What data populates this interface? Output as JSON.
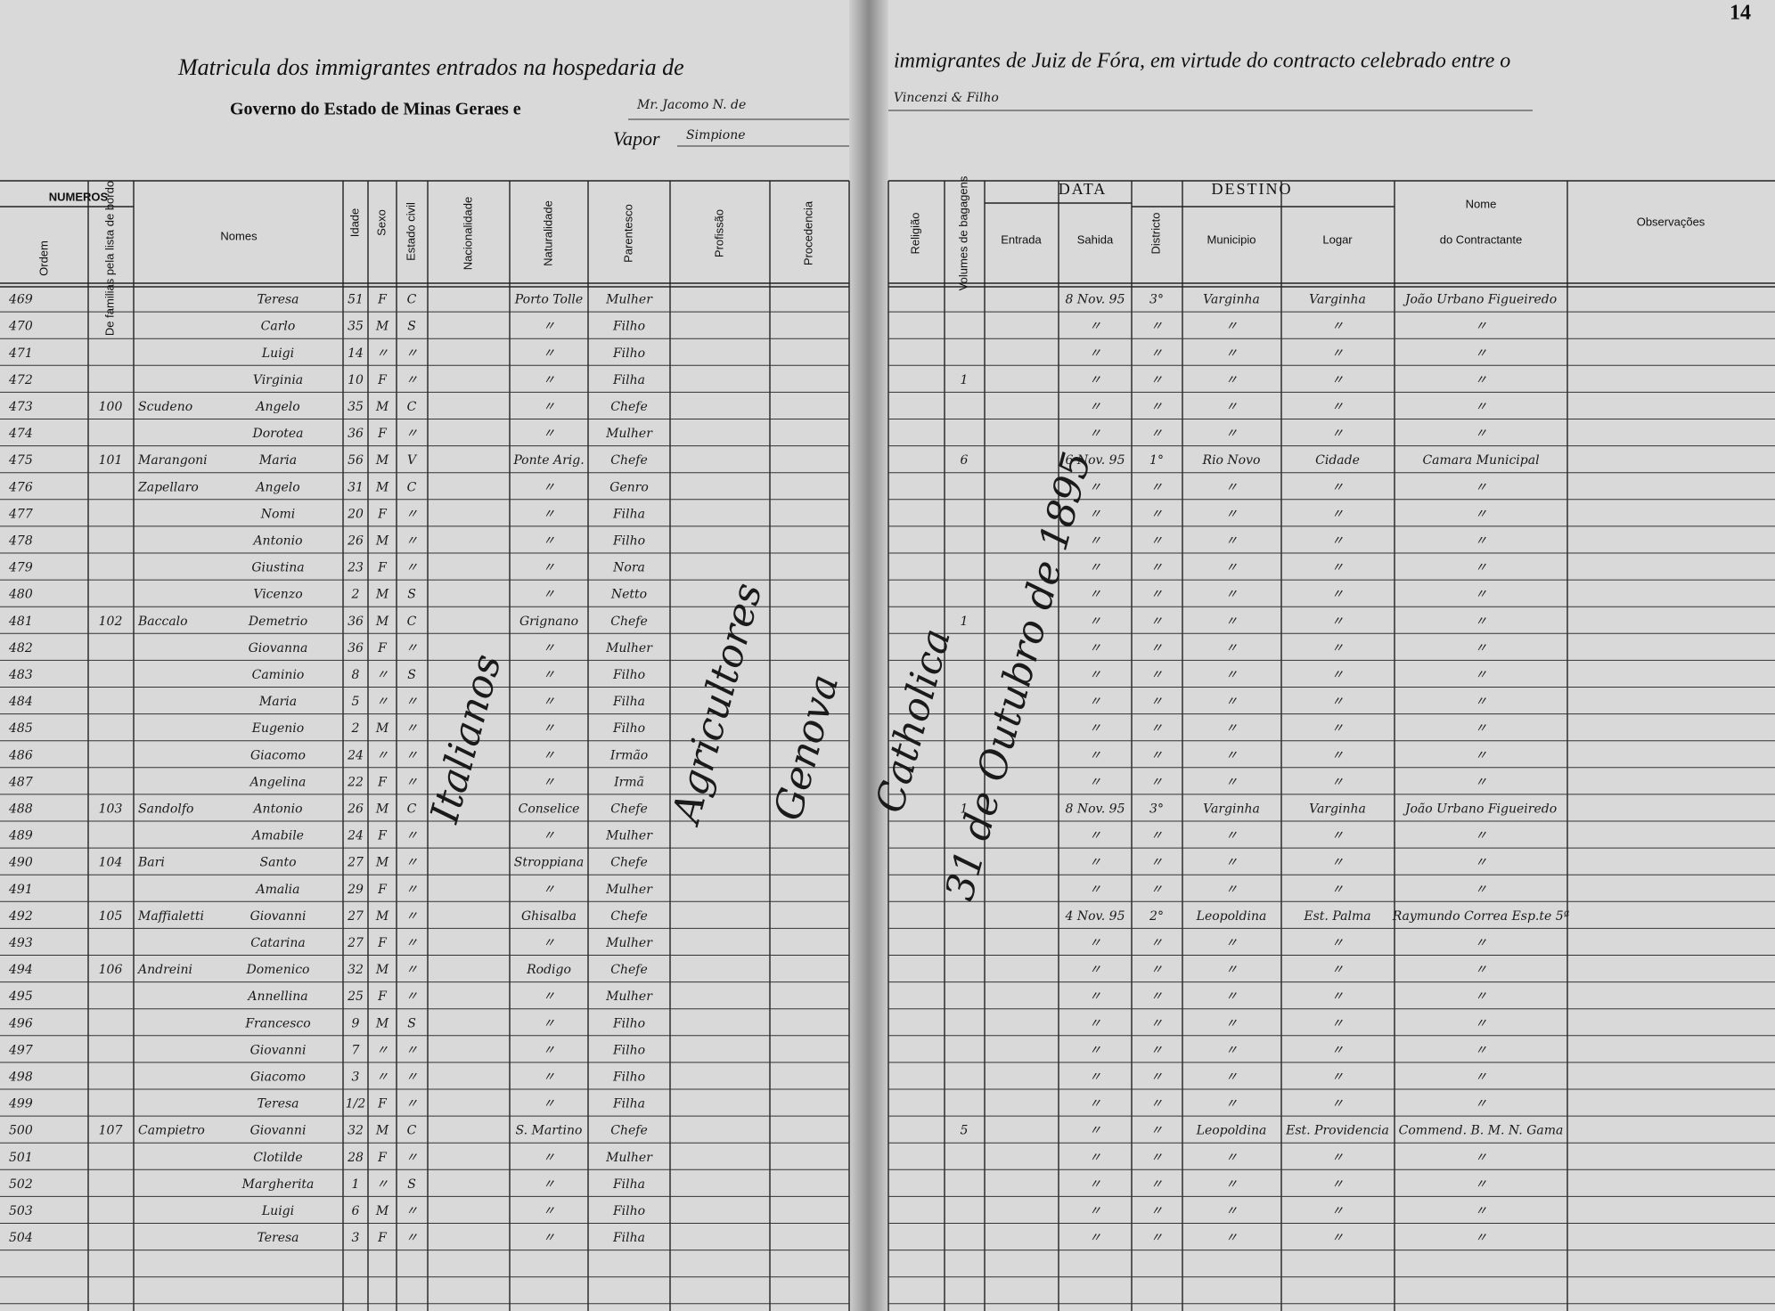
{
  "header": {
    "page_number": "14",
    "title_left": "Matricula dos immigrantes entrados na hospedaria de",
    "title_right": "immigrantes de Juiz de Fóra, em virtude do contracto celebrado entre o",
    "line2_left": "Governo do Estado de Minas Geraes e",
    "line2_hand": "Mr. Jacomo N. de",
    "line2_right": "Vincenzi & Filho",
    "line3_label": "Vapor",
    "line3_hand": "Simpione"
  },
  "columns": {
    "numeros": "NUMEROS",
    "ordem": "Ordem",
    "familias": "De familias pela lista de bordo",
    "nomes": "Nomes",
    "idade": "Idade",
    "sexo": "Sexo",
    "estado": "Estado civil",
    "nacionalidade": "Nacionalidade",
    "naturalidade": "Naturalidade",
    "parentesco": "Parentesco",
    "profissao": "Profissão",
    "procedencia": "Procedencia",
    "religiao": "Religião",
    "volumes": "Volumes de bagagens",
    "data": "DATA",
    "entrada": "Entrada",
    "sahida": "Sahida",
    "districto": "Districto",
    "destino": "DESTINO",
    "municipio": "Municipio",
    "logar": "Logar",
    "contractante_1": "Nome",
    "contractante_2": "do Contractante",
    "observacoes": "Observações"
  },
  "spanning": {
    "nacionalidade": "Italianos",
    "profissao": "Agricultores",
    "procedencia": "Genova",
    "religiao": "Catholica",
    "entrada": "31 de Outubro de 1895"
  },
  "table": {
    "rows": [
      [
        "469",
        null,
        null,
        "Teresa",
        "51",
        "F",
        "C",
        "Porto Tolle",
        "Mulher",
        null,
        "8 Nov. 95",
        "3°",
        "Varginha",
        "Varginha",
        "João Urbano Figueiredo"
      ],
      [
        "470",
        null,
        null,
        "Carlo",
        "35",
        "M",
        "S",
        "〃",
        "Filho",
        null,
        "〃",
        "〃",
        "〃",
        "〃",
        "〃"
      ],
      [
        "471",
        null,
        null,
        "Luigi",
        "14",
        "〃",
        "〃",
        "〃",
        "Filho",
        null,
        "〃",
        "〃",
        "〃",
        "〃",
        "〃"
      ],
      [
        "472",
        null,
        null,
        "Virginia",
        "10",
        "F",
        "〃",
        "〃",
        "Filha",
        "1",
        "〃",
        "〃",
        "〃",
        "〃",
        "〃"
      ],
      [
        "473",
        "100",
        "Scudeno",
        "Angelo",
        "35",
        "M",
        "C",
        "〃",
        "Chefe",
        null,
        "〃",
        "〃",
        "〃",
        "〃",
        "〃"
      ],
      [
        "474",
        null,
        null,
        "Dorotea",
        "36",
        "F",
        "〃",
        "〃",
        "Mulher",
        null,
        "〃",
        "〃",
        "〃",
        "〃",
        "〃"
      ],
      [
        "475",
        "101",
        "Marangoni",
        "Maria",
        "56",
        "M",
        "V",
        "Ponte Arig.",
        "Chefe",
        "6",
        "6 Nov. 95",
        "1°",
        "Rio Novo",
        "Cidade",
        "Camara Municipal"
      ],
      [
        "476",
        null,
        "Zapellaro",
        "Angelo",
        "31",
        "M",
        "C",
        "〃",
        "Genro",
        null,
        "〃",
        "〃",
        "〃",
        "〃",
        "〃"
      ],
      [
        "477",
        null,
        null,
        "Nomi",
        "20",
        "F",
        "〃",
        "〃",
        "Filha",
        null,
        "〃",
        "〃",
        "〃",
        "〃",
        "〃"
      ],
      [
        "478",
        null,
        null,
        "Antonio",
        "26",
        "M",
        "〃",
        "〃",
        "Filho",
        null,
        "〃",
        "〃",
        "〃",
        "〃",
        "〃"
      ],
      [
        "479",
        null,
        null,
        "Giustina",
        "23",
        "F",
        "〃",
        "〃",
        "Nora",
        null,
        "〃",
        "〃",
        "〃",
        "〃",
        "〃"
      ],
      [
        "480",
        null,
        null,
        "Vicenzo",
        "2",
        "M",
        "S",
        "〃",
        "Netto",
        null,
        "〃",
        "〃",
        "〃",
        "〃",
        "〃"
      ],
      [
        "481",
        "102",
        "Baccalo",
        "Demetrio",
        "36",
        "M",
        "C",
        "Grignano",
        "Chefe",
        "1",
        "〃",
        "〃",
        "〃",
        "〃",
        "〃"
      ],
      [
        "482",
        null,
        null,
        "Giovanna",
        "36",
        "F",
        "〃",
        "〃",
        "Mulher",
        null,
        "〃",
        "〃",
        "〃",
        "〃",
        "〃"
      ],
      [
        "483",
        null,
        null,
        "Caminio",
        "8",
        "〃",
        "S",
        "〃",
        "Filho",
        null,
        "〃",
        "〃",
        "〃",
        "〃",
        "〃"
      ],
      [
        "484",
        null,
        null,
        "Maria",
        "5",
        "〃",
        "〃",
        "〃",
        "Filha",
        null,
        "〃",
        "〃",
        "〃",
        "〃",
        "〃"
      ],
      [
        "485",
        null,
        null,
        "Eugenio",
        "2",
        "M",
        "〃",
        "〃",
        "Filho",
        null,
        "〃",
        "〃",
        "〃",
        "〃",
        "〃"
      ],
      [
        "486",
        null,
        null,
        "Giacomo",
        "24",
        "〃",
        "〃",
        "〃",
        "Irmão",
        null,
        "〃",
        "〃",
        "〃",
        "〃",
        "〃"
      ],
      [
        "487",
        null,
        null,
        "Angelina",
        "22",
        "F",
        "〃",
        "〃",
        "Irmã",
        null,
        "〃",
        "〃",
        "〃",
        "〃",
        "〃"
      ],
      [
        "488",
        "103",
        "Sandolfo",
        "Antonio",
        "26",
        "M",
        "C",
        "Conselice",
        "Chefe",
        "1",
        "8 Nov. 95",
        "3°",
        "Varginha",
        "Varginha",
        "João Urbano Figueiredo"
      ],
      [
        "489",
        null,
        null,
        "Amabile",
        "24",
        "F",
        "〃",
        "〃",
        "Mulher",
        null,
        "〃",
        "〃",
        "〃",
        "〃",
        "〃"
      ],
      [
        "490",
        "104",
        "Bari",
        "Santo",
        "27",
        "M",
        "〃",
        "Stroppiana",
        "Chefe",
        null,
        "〃",
        "〃",
        "〃",
        "〃",
        "〃"
      ],
      [
        "491",
        null,
        null,
        "Amalia",
        "29",
        "F",
        "〃",
        "〃",
        "Mulher",
        null,
        "〃",
        "〃",
        "〃",
        "〃",
        "〃"
      ],
      [
        "492",
        "105",
        "Maffialetti",
        "Giovanni",
        "27",
        "M",
        "〃",
        "Ghisalba",
        "Chefe",
        null,
        "4 Nov. 95",
        "2°",
        "Leopoldina",
        "Est. Palma",
        "Raymundo Correa Esp.te 5ª"
      ],
      [
        "493",
        null,
        null,
        "Catarina",
        "27",
        "F",
        "〃",
        "〃",
        "Mulher",
        null,
        "〃",
        "〃",
        "〃",
        "〃",
        "〃"
      ],
      [
        "494",
        "106",
        "Andreini",
        "Domenico",
        "32",
        "M",
        "〃",
        "Rodigo",
        "Chefe",
        null,
        "〃",
        "〃",
        "〃",
        "〃",
        "〃"
      ],
      [
        "495",
        null,
        null,
        "Annellina",
        "25",
        "F",
        "〃",
        "〃",
        "Mulher",
        null,
        "〃",
        "〃",
        "〃",
        "〃",
        "〃"
      ],
      [
        "496",
        null,
        null,
        "Francesco",
        "9",
        "M",
        "S",
        "〃",
        "Filho",
        null,
        "〃",
        "〃",
        "〃",
        "〃",
        "〃"
      ],
      [
        "497",
        null,
        null,
        "Giovanni",
        "7",
        "〃",
        "〃",
        "〃",
        "Filho",
        null,
        "〃",
        "〃",
        "〃",
        "〃",
        "〃"
      ],
      [
        "498",
        null,
        null,
        "Giacomo",
        "3",
        "〃",
        "〃",
        "〃",
        "Filho",
        null,
        "〃",
        "〃",
        "〃",
        "〃",
        "〃"
      ],
      [
        "499",
        null,
        null,
        "Teresa",
        "1/2",
        "F",
        "〃",
        "〃",
        "Filha",
        null,
        "〃",
        "〃",
        "〃",
        "〃",
        "〃"
      ],
      [
        "500",
        "107",
        "Campietro",
        "Giovanni",
        "32",
        "M",
        "C",
        "S. Martino",
        "Chefe",
        "5",
        "〃",
        "〃",
        "Leopoldina",
        "Est. Providencia",
        "Commend. B. M. N. Gama"
      ],
      [
        "501",
        null,
        null,
        "Clotilde",
        "28",
        "F",
        "〃",
        "〃",
        "Mulher",
        null,
        "〃",
        "〃",
        "〃",
        "〃",
        "〃"
      ],
      [
        "502",
        null,
        null,
        "Margherita",
        "1",
        "〃",
        "S",
        "〃",
        "Filha",
        null,
        "〃",
        "〃",
        "〃",
        "〃",
        "〃"
      ],
      [
        "503",
        null,
        null,
        "Luigi",
        "6",
        "M",
        "〃",
        "〃",
        "Filho",
        null,
        "〃",
        "〃",
        "〃",
        "〃",
        "〃"
      ],
      [
        "504",
        null,
        null,
        "Teresa",
        "3",
        "F",
        "〃",
        "〃",
        "Filha",
        null,
        "〃",
        "〃",
        "〃",
        "〃",
        "〃"
      ]
    ]
  }
}
